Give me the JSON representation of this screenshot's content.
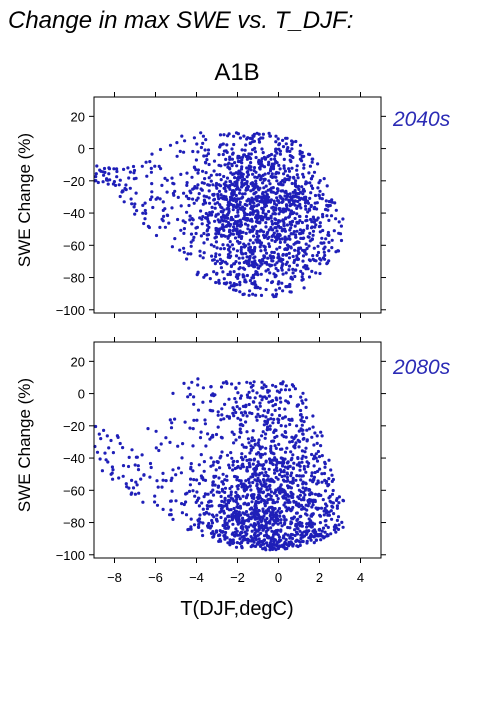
{
  "figure": {
    "title": "Change in max SWE vs. T_DJF:",
    "scenario": "A1B"
  },
  "chart_data": [
    {
      "type": "scatter",
      "period_label": "2040s",
      "xlabel": "",
      "ylabel": "SWE Change (%)",
      "xlim": [
        -9,
        5
      ],
      "ylim": [
        -102,
        32
      ],
      "xticks": [
        -8,
        -6,
        -4,
        -2,
        0,
        2,
        4
      ],
      "yticks": [
        20,
        0,
        -20,
        -40,
        -60,
        -80,
        -100
      ],
      "ytick_labels": [
        "20",
        "0",
        "−20",
        "−40",
        "−60",
        "−80",
        "−100"
      ],
      "show_x_tick_labels": false,
      "point_color": "#1f1fb8",
      "point_count_approx": 1600,
      "cloud_envelope": [
        {
          "x": -9.0,
          "y_min": -20,
          "y_max": -8
        },
        {
          "x": -8.0,
          "y_min": -25,
          "y_max": -12
        },
        {
          "x": -7.0,
          "y_min": -42,
          "y_max": -5
        },
        {
          "x": -6.0,
          "y_min": -55,
          "y_max": -3
        },
        {
          "x": -5.0,
          "y_min": -65,
          "y_max": 10
        },
        {
          "x": -4.0,
          "y_min": -78,
          "y_max": 10
        },
        {
          "x": -3.0,
          "y_min": -85,
          "y_max": 10
        },
        {
          "x": -2.0,
          "y_min": -90,
          "y_max": 10
        },
        {
          "x": -1.0,
          "y_min": -92,
          "y_max": 10
        },
        {
          "x": 0.0,
          "y_min": -92,
          "y_max": 9
        },
        {
          "x": 1.0,
          "y_min": -88,
          "y_max": 6
        },
        {
          "x": 2.0,
          "y_min": -85,
          "y_max": -10
        },
        {
          "x": 3.0,
          "y_min": -65,
          "y_max": -40
        }
      ],
      "density_center": {
        "x": -1.0,
        "y": -40
      }
    },
    {
      "type": "scatter",
      "period_label": "2080s",
      "xlabel": "T(DJF,degC)",
      "ylabel": "SWE Change (%)",
      "xlim": [
        -9,
        5
      ],
      "ylim": [
        -102,
        32
      ],
      "xticks": [
        -8,
        -6,
        -4,
        -2,
        0,
        2,
        4
      ],
      "xtick_labels": [
        "−8",
        "−6",
        "−4",
        "−2",
        "0",
        "2",
        "4"
      ],
      "yticks": [
        20,
        0,
        -20,
        -40,
        -60,
        -80,
        -100
      ],
      "ytick_labels": [
        "20",
        "0",
        "−20",
        "−40",
        "−60",
        "−80",
        "−100"
      ],
      "show_x_tick_labels": true,
      "point_color": "#1f1fb8",
      "point_count_approx": 1600,
      "cloud_envelope": [
        {
          "x": -9.0,
          "y_min": -45,
          "y_max": -20
        },
        {
          "x": -8.0,
          "y_min": -55,
          "y_max": -25
        },
        {
          "x": -7.0,
          "y_min": -65,
          "y_max": -30
        },
        {
          "x": -6.0,
          "y_min": -72,
          "y_max": -10
        },
        {
          "x": -5.0,
          "y_min": -80,
          "y_max": 5
        },
        {
          "x": -4.0,
          "y_min": -88,
          "y_max": 10
        },
        {
          "x": -3.0,
          "y_min": -93,
          "y_max": 8
        },
        {
          "x": -2.0,
          "y_min": -96,
          "y_max": 8
        },
        {
          "x": -1.0,
          "y_min": -97,
          "y_max": 8
        },
        {
          "x": 0.0,
          "y_min": -97,
          "y_max": 8
        },
        {
          "x": 1.0,
          "y_min": -95,
          "y_max": 7
        },
        {
          "x": 2.0,
          "y_min": -92,
          "y_max": -20
        },
        {
          "x": 3.0,
          "y_min": -85,
          "y_max": -65
        }
      ],
      "density_center": {
        "x": -0.5,
        "y": -82
      }
    }
  ]
}
